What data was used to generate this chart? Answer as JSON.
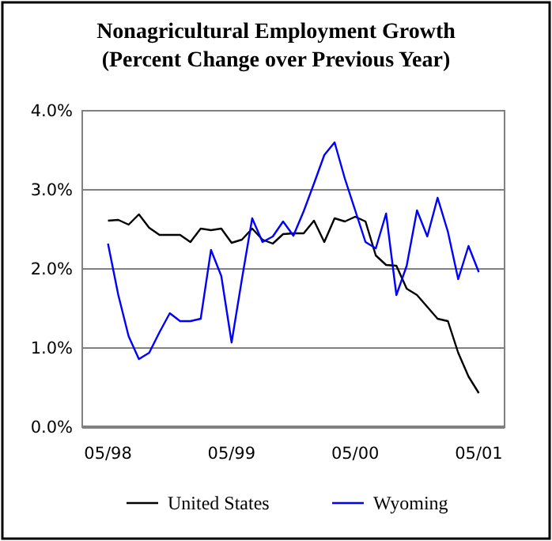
{
  "chart_data": {
    "type": "line",
    "title": "Nonagricultural Employment Growth",
    "subtitle": "(Percent Change over Previous Year)",
    "categories": [
      "05/98",
      null,
      null,
      null,
      null,
      null,
      null,
      null,
      null,
      null,
      null,
      null,
      "05/99",
      null,
      null,
      null,
      null,
      null,
      null,
      null,
      null,
      null,
      null,
      null,
      "05/00",
      null,
      null,
      null,
      null,
      null,
      null,
      null,
      null,
      null,
      null,
      null,
      "05/01"
    ],
    "series": [
      {
        "name": "United States",
        "color": "#000000",
        "values": [
          2.61,
          2.62,
          2.56,
          2.69,
          2.52,
          2.43,
          2.43,
          2.43,
          2.34,
          2.51,
          2.49,
          2.51,
          2.33,
          2.37,
          2.51,
          2.37,
          2.32,
          2.44,
          2.45,
          2.45,
          2.61,
          2.34,
          2.64,
          2.6,
          2.66,
          2.6,
          2.17,
          2.05,
          2.04,
          1.75,
          1.67,
          1.52,
          1.37,
          1.34,
          0.94,
          0.64,
          0.43
        ]
      },
      {
        "name": "Wyoming",
        "color": "#0000ff",
        "values": [
          2.32,
          1.67,
          1.15,
          0.86,
          0.94,
          1.2,
          1.44,
          1.34,
          1.34,
          1.37,
          2.24,
          1.91,
          1.07,
          1.87,
          2.64,
          2.34,
          2.41,
          2.6,
          2.42,
          2.73,
          3.08,
          3.44,
          3.6,
          3.14,
          2.74,
          2.34,
          2.26,
          2.7,
          1.67,
          2.04,
          2.74,
          2.41,
          2.9,
          2.47,
          1.87,
          2.29,
          1.96
        ]
      }
    ],
    "ylim": [
      0,
      4
    ],
    "yticks": [
      {
        "value": 0,
        "label": "0.0%"
      },
      {
        "value": 1,
        "label": "1.0%"
      },
      {
        "value": 2,
        "label": "2.0%"
      },
      {
        "value": 3,
        "label": "3.0%"
      },
      {
        "value": 4,
        "label": "4.0%"
      }
    ],
    "grid": "y",
    "legend": "bottom"
  }
}
